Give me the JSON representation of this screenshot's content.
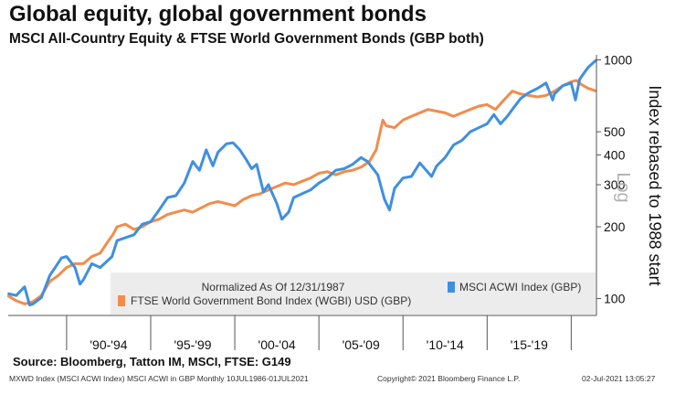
{
  "header": {
    "title": "Global equity, global government bonds",
    "subtitle": "MSCI All-Country Equity & FTSE World Government Bonds (GBP both)"
  },
  "footer": {
    "source": "Source: Bloomberg, Tatton IM, MSCI, FTSE: G149",
    "info": "MXWD Index (MSCI ACWI Index) MSCI ACWI in GBP  Monthly 10JUL1986-01JUL2021",
    "copyright": "Copyright© 2021 Bloomberg Finance L.P.",
    "timestamp": "02-Jul-2021 13:05:27"
  },
  "chart_data": {
    "type": "line",
    "title": "Global equity, global government bonds",
    "subtitle": "MSCI All-Country Equity & FTSE World Government Bonds (GBP both)",
    "ylabel": "Index rebased to 1988 start",
    "scale_label": "Log",
    "yscale": "log",
    "ylim": [
      85,
      1050
    ],
    "xlim": [
      1986.53,
      2021.5
    ],
    "yticks": [
      100,
      200,
      300,
      400,
      500,
      1000
    ],
    "ytick_labels": [
      "100",
      "200",
      "300",
      "400",
      "500",
      "1000"
    ],
    "x_period_labels": [
      "'90-'94",
      "'95-'99",
      "'00-'04",
      "'05-'09",
      "'10-'14",
      "'15-'19"
    ],
    "legend": {
      "note": "Normalized As Of 12/31/1987",
      "placement": "bottom"
    },
    "grid": false,
    "series": [
      {
        "name": "MSCI ACWI Index (GBP)",
        "color": "#3f8fe0",
        "x": [
          1986.5,
          1987.0,
          1987.5,
          1987.8,
          1988.0,
          1988.5,
          1989.0,
          1989.7,
          1990.0,
          1990.5,
          1990.8,
          1991.0,
          1991.5,
          1992.0,
          1992.7,
          1993.0,
          1993.5,
          1994.0,
          1994.5,
          1995.0,
          1995.5,
          1996.0,
          1996.5,
          1997.0,
          1997.5,
          1997.9,
          1998.3,
          1998.7,
          1999.0,
          1999.5,
          1999.9,
          2000.3,
          2000.7,
          2001.0,
          2001.3,
          2001.7,
          2002.0,
          2002.5,
          2002.8,
          2003.2,
          2003.5,
          2004.0,
          2004.5,
          2005.0,
          2005.5,
          2006.0,
          2006.5,
          2007.0,
          2007.5,
          2007.9,
          2008.5,
          2008.9,
          2009.2,
          2009.5,
          2010.0,
          2010.5,
          2011.0,
          2011.7,
          2012.0,
          2012.5,
          2013.0,
          2013.5,
          2014.0,
          2014.5,
          2015.0,
          2015.4,
          2015.8,
          2016.2,
          2016.5,
          2017.0,
          2017.5,
          2018.0,
          2018.5,
          2018.9,
          2019.0,
          2019.5,
          2020.0,
          2020.25,
          2020.5,
          2021.0,
          2021.5
        ],
        "y": [
          105,
          103,
          112,
          94,
          95,
          101,
          125,
          148,
          150,
          135,
          115,
          120,
          140,
          135,
          150,
          175,
          180,
          185,
          205,
          210,
          235,
          265,
          270,
          305,
          375,
          345,
          420,
          360,
          410,
          445,
          450,
          420,
          380,
          350,
          365,
          280,
          300,
          250,
          215,
          230,
          265,
          275,
          285,
          305,
          320,
          345,
          350,
          365,
          390,
          375,
          330,
          260,
          235,
          290,
          320,
          325,
          370,
          325,
          360,
          390,
          440,
          460,
          500,
          520,
          540,
          590,
          540,
          580,
          620,
          690,
          730,
          760,
          800,
          680,
          720,
          780,
          800,
          680,
          830,
          930,
          1000
        ]
      },
      {
        "name": "FTSE World Government Bond Index (WGBI) USD (GBP)",
        "color": "#f28c4a",
        "x": [
          1986.5,
          1987.0,
          1987.5,
          1988.0,
          1988.5,
          1989.0,
          1989.5,
          1990.0,
          1990.5,
          1991.0,
          1991.5,
          1992.0,
          1992.5,
          1992.75,
          1993.0,
          1993.5,
          1994.0,
          1994.5,
          1995.0,
          1995.5,
          1996.0,
          1996.5,
          1997.0,
          1997.5,
          1998.0,
          1998.5,
          1999.0,
          1999.5,
          2000.0,
          2000.5,
          2001.0,
          2001.5,
          2002.0,
          2002.5,
          2003.0,
          2003.5,
          2004.0,
          2004.5,
          2005.0,
          2005.5,
          2006.0,
          2006.5,
          2007.0,
          2007.5,
          2008.0,
          2008.4,
          2008.8,
          2009.0,
          2009.5,
          2010.0,
          2010.5,
          2011.0,
          2011.5,
          2012.0,
          2012.5,
          2013.0,
          2013.5,
          2014.0,
          2014.5,
          2015.0,
          2015.5,
          2016.0,
          2016.5,
          2017.0,
          2017.5,
          2018.0,
          2018.5,
          2019.0,
          2019.5,
          2020.0,
          2020.3,
          2020.6,
          2021.0,
          2021.5
        ],
        "y": [
          103,
          98,
          95,
          97,
          103,
          118,
          125,
          135,
          140,
          140,
          150,
          155,
          175,
          185,
          200,
          205,
          195,
          200,
          210,
          215,
          225,
          230,
          235,
          230,
          240,
          250,
          255,
          250,
          245,
          260,
          270,
          275,
          285,
          295,
          305,
          300,
          310,
          320,
          335,
          340,
          330,
          340,
          345,
          355,
          375,
          420,
          560,
          530,
          520,
          560,
          580,
          600,
          620,
          610,
          600,
          580,
          600,
          620,
          640,
          650,
          620,
          680,
          740,
          720,
          710,
          700,
          710,
          740,
          780,
          810,
          820,
          790,
          760,
          740
        ]
      }
    ]
  }
}
